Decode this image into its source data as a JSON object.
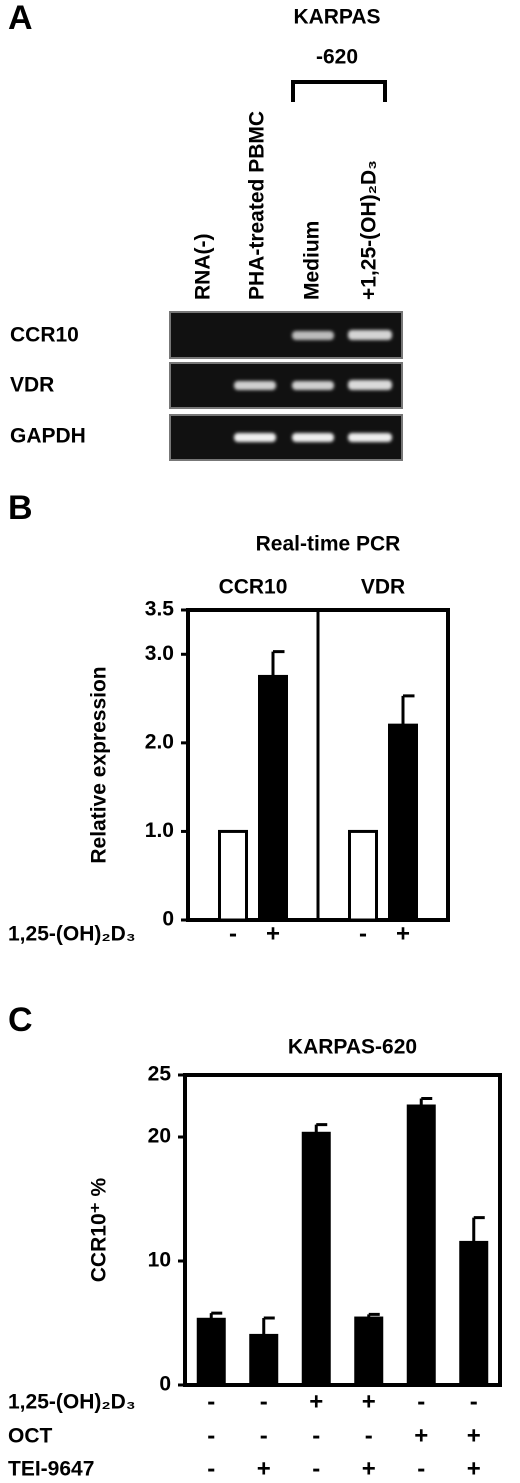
{
  "gel": {
    "panel": "A",
    "group": [
      "KARPAS",
      "-620"
    ],
    "lanes": [
      "RNA(-)",
      "PHA-treated PBMC",
      "Medium",
      "+1,25-(OH)₂D₃"
    ],
    "rows": [
      "CCR10",
      "VDR",
      "GAPDH"
    ]
  },
  "chart_data": [
    {
      "type": "bar",
      "panel": "B",
      "title": "Real-time PCR",
      "ylabel": "Relative expression",
      "groups": [
        {
          "name": "CCR10",
          "values": [
            1.0,
            2.75
          ],
          "errors": [
            null,
            0.28
          ]
        },
        {
          "name": "VDR",
          "values": [
            1.0,
            2.2
          ],
          "errors": [
            null,
            0.33
          ]
        }
      ],
      "colors": [
        "#ffffff",
        "#000000"
      ],
      "ylim": [
        0,
        3.5
      ],
      "yticks": [
        0,
        {
          "value": 1,
          "label": "1.0"
        },
        {
          "value": 2,
          "label": "2.0"
        },
        {
          "value": 3,
          "label": "3.0"
        },
        3.5
      ],
      "treatments": [
        {
          "label": "1,25-(OH)₂D₃",
          "signs": [
            "-",
            "+",
            "-",
            "+"
          ]
        }
      ]
    },
    {
      "type": "bar",
      "panel": "C",
      "title": "KARPAS-620",
      "ylabel": "CCR10⁺ %",
      "values": [
        5.3,
        4.0,
        20.3,
        5.4,
        22.5,
        11.5
      ],
      "errors": [
        0.5,
        1.4,
        0.7,
        0.3,
        0.6,
        2.0
      ],
      "color": "#000000",
      "ylim": [
        0,
        25
      ],
      "yticks": [
        0,
        10,
        20,
        25
      ],
      "treatments": [
        {
          "label": "1,25-(OH)₂D₃",
          "signs": [
            "-",
            "-",
            "+",
            "+",
            "-",
            "-"
          ]
        },
        {
          "label": "OCT",
          "signs": [
            "-",
            "-",
            "-",
            "-",
            "+",
            "+"
          ]
        },
        {
          "label": "TEI-9647",
          "signs": [
            "-",
            "+",
            "-",
            "+",
            "-",
            "+"
          ]
        }
      ]
    }
  ]
}
